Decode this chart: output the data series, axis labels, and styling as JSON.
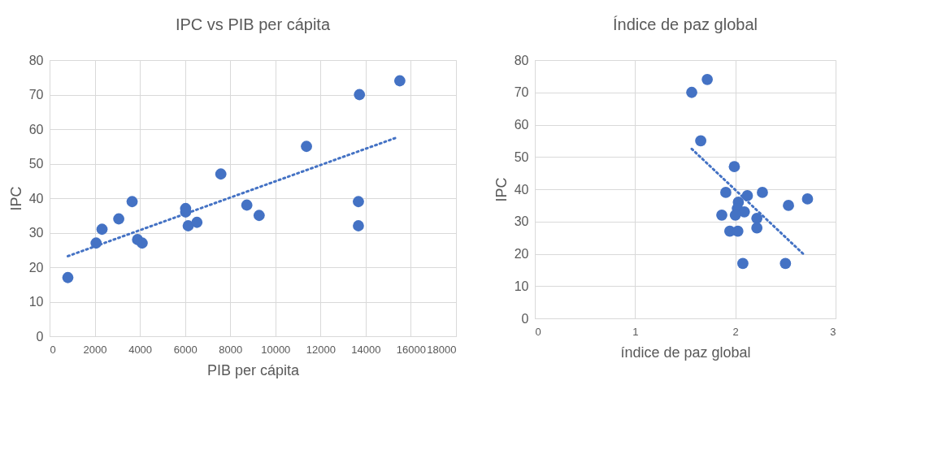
{
  "chart_data": [
    {
      "type": "scatter",
      "title": "IPC vs PIB per cápita",
      "xlabel": "PIB per cápita",
      "ylabel": "IPC",
      "xlim": [
        0,
        18000
      ],
      "xticks": [
        0,
        2000,
        4000,
        6000,
        8000,
        10000,
        12000,
        14000,
        16000,
        18000
      ],
      "ylim": [
        0,
        80
      ],
      "yticks": [
        0,
        10,
        20,
        30,
        40,
        50,
        60,
        70,
        80
      ],
      "grid": true,
      "series": [
        {
          "marker": "circle",
          "color": "#4472c4",
          "x": [
            809,
            2061,
            2323,
            3064,
            3656,
            3895,
            4100,
            6025,
            6025,
            6139,
            6526,
            7585,
            8736,
            9282,
            11378,
            13724,
            13678,
            13678,
            15512
          ],
          "values": [
            17,
            27,
            31,
            34,
            39,
            28,
            27,
            37,
            36,
            32,
            33,
            47,
            38,
            35,
            55,
            70,
            39,
            32,
            74
          ]
        },
        {
          "type": "line",
          "marker": "none",
          "line_style": "dotted",
          "color": "#4472c4",
          "x": [
            809,
            15433
          ],
          "values": [
            23.2,
            57.7
          ]
        }
      ]
    },
    {
      "type": "scatter",
      "title": "Índice de paz global",
      "xlabel": "índice de paz global",
      "ylabel": "IPC",
      "xlim": [
        0,
        3
      ],
      "xticks": [
        0,
        1,
        2,
        3
      ],
      "ylim": [
        0,
        80
      ],
      "yticks": [
        0,
        10,
        20,
        30,
        40,
        50,
        60,
        70,
        80
      ],
      "grid": true,
      "series": [
        {
          "marker": "circle",
          "color": "#4472c4",
          "x": [
            1.565,
            1.72,
            1.655,
            1.99,
            1.905,
            2.27,
            2.72,
            2.53,
            2.12,
            2.03,
            2.02,
            2.09,
            2.0,
            1.865,
            2.215,
            2.215,
            1.945,
            2.025,
            2.075,
            2.5
          ],
          "values": [
            70,
            74,
            55,
            47,
            39,
            39,
            37,
            35,
            38,
            36,
            34,
            33,
            32,
            32,
            31,
            28,
            27,
            27,
            17,
            17
          ]
        },
        {
          "type": "line",
          "marker": "none",
          "line_style": "dotted",
          "color": "#4472c4",
          "x": [
            1.565,
            2.69
          ],
          "values": [
            52.5,
            19.6
          ]
        }
      ]
    }
  ]
}
